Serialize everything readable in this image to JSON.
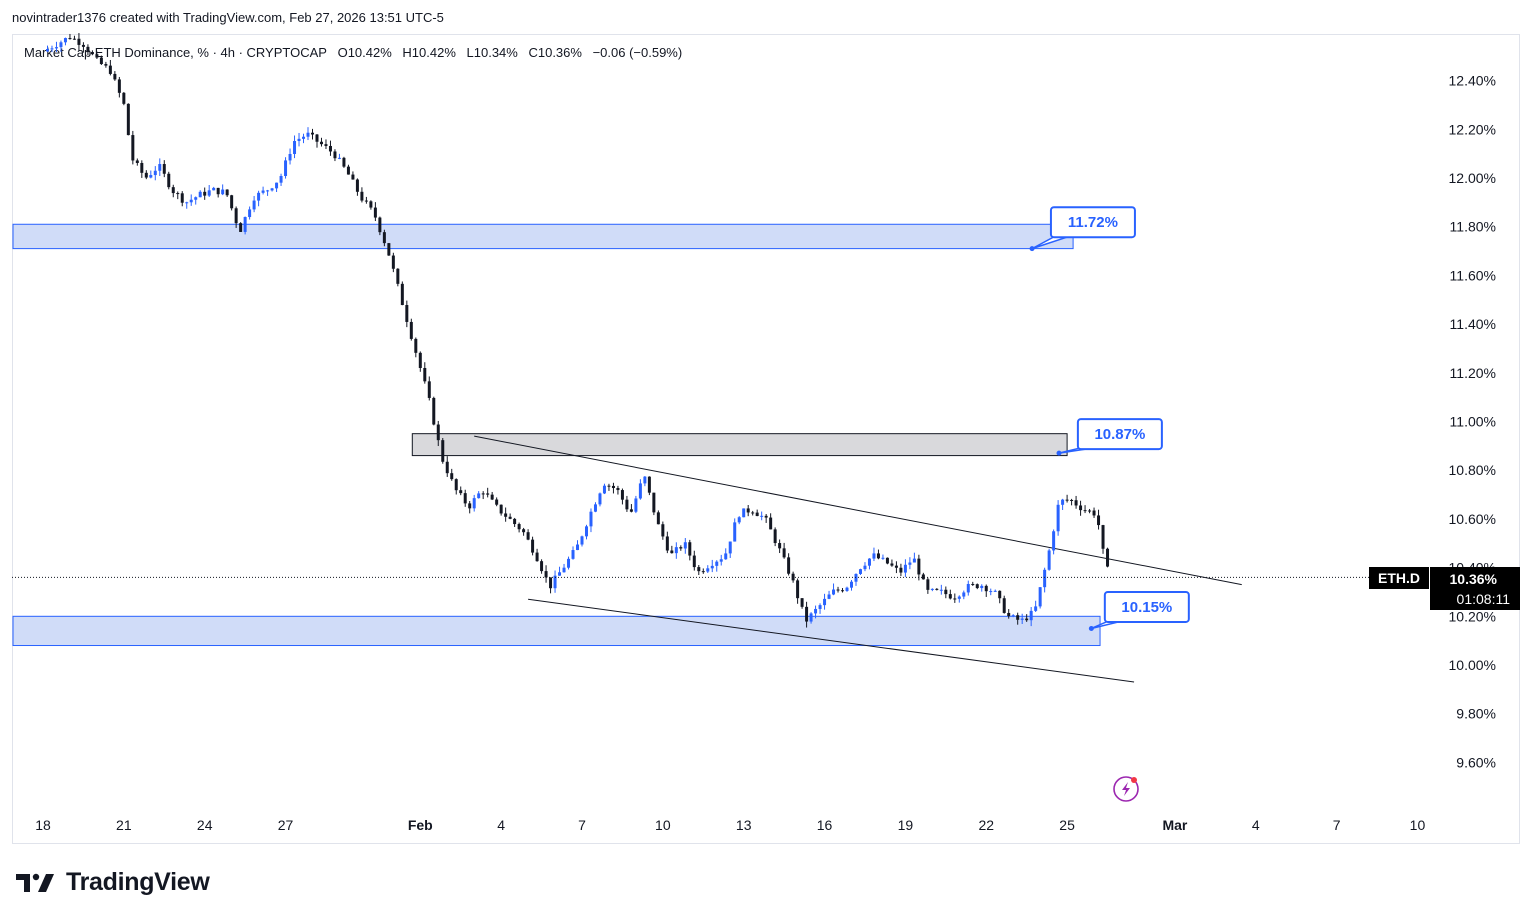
{
  "header": {
    "credit": "novintrader1376 created with TradingView.com, Feb 27, 2026 13:51 UTC-5"
  },
  "legend": {
    "symbol": "Market Cap ETH Dominance, % · 4h · CRYPTOCAP",
    "open": "O10.42%",
    "high": "H10.42%",
    "low": "L10.34%",
    "close": "C10.36%",
    "change": "−0.06 (−0.59%)"
  },
  "price_scale": {
    "ticker": "ETH.D",
    "last_price": "10.36%",
    "countdown": "01:08:11"
  },
  "annotations": {
    "upper_zone_label": "11.72%",
    "mid_zone_label": "10.87%",
    "lower_zone_label": "10.15%"
  },
  "footer": {
    "brand": "TradingView"
  },
  "colors": {
    "up_candle": "#2962ff",
    "down_candle": "#131722",
    "zone_fill": "#d0dcf8",
    "zone_border": "#2962ff",
    "grey_zone_fill": "#d9d9dc",
    "label_border": "#2962ff",
    "price_tag_bg": "#000000"
  },
  "chart_data": {
    "type": "candlestick",
    "title": "Market Cap ETH Dominance, % · 4h · CRYPTOCAP",
    "ylim": [
      9.5,
      12.6
    ],
    "y_ticks": [
      "12.40%",
      "12.20%",
      "12.00%",
      "11.80%",
      "11.60%",
      "11.40%",
      "11.20%",
      "11.00%",
      "10.80%",
      "10.60%",
      "10.40%",
      "10.20%",
      "10.00%",
      "9.80%",
      "9.60%"
    ],
    "y_tick_values": [
      12.4,
      12.2,
      12.0,
      11.8,
      11.6,
      11.4,
      11.2,
      11.0,
      10.8,
      10.6,
      10.4,
      10.2,
      10.0,
      9.8,
      9.6
    ],
    "x_ticks": [
      "18",
      "21",
      "24",
      "27",
      "Feb",
      "4",
      "7",
      "10",
      "13",
      "16",
      "19",
      "22",
      "25",
      "Mar",
      "4",
      "7",
      "10"
    ],
    "x_tick_days": [
      0,
      3,
      6,
      9,
      14,
      17,
      20,
      23,
      26,
      29,
      32,
      35,
      38,
      42,
      45,
      48,
      51
    ],
    "x_axis_start": "Jan 18, 2026",
    "last_close": 10.36,
    "zones": [
      {
        "name": "upper-support-zone",
        "from_date": "Jan 18",
        "to_date": "Feb 25",
        "y_low": 11.71,
        "y_high": 11.81,
        "label": "11.72%"
      },
      {
        "name": "resistance-zone",
        "from_date": "Feb 1",
        "to_date": "Feb 25",
        "y_low": 10.86,
        "y_high": 10.95,
        "label": "10.87%"
      },
      {
        "name": "lower-support-zone",
        "from_date": "Jan 18",
        "to_date": "Feb 26",
        "y_low": 10.08,
        "y_high": 10.2,
        "label": "10.15%"
      }
    ],
    "trendlines": [
      {
        "name": "upper-trendline",
        "from": {
          "date": "Feb 3",
          "y": 10.94
        },
        "to": {
          "date": "Mar 4",
          "y": 10.33
        }
      },
      {
        "name": "lower-trendline",
        "from": {
          "date": "Feb 5",
          "y": 10.27
        },
        "to": {
          "date": "Feb 26",
          "y": 9.93
        }
      }
    ],
    "series": [
      {
        "name": "ETH.D 4h close path",
        "points": [
          {
            "d": 0.0,
            "v": 12.52
          },
          {
            "d": 0.5,
            "v": 12.55
          },
          {
            "d": 1.0,
            "v": 12.58
          },
          {
            "d": 1.5,
            "v": 12.55
          },
          {
            "d": 2.0,
            "v": 12.48
          },
          {
            "d": 2.5,
            "v": 12.44
          },
          {
            "d": 3.0,
            "v": 12.3
          },
          {
            "d": 3.3,
            "v": 12.08
          },
          {
            "d": 3.8,
            "v": 12.0
          },
          {
            "d": 4.3,
            "v": 12.05
          },
          {
            "d": 4.8,
            "v": 11.95
          },
          {
            "d": 5.3,
            "v": 11.9
          },
          {
            "d": 5.8,
            "v": 11.93
          },
          {
            "d": 6.3,
            "v": 11.95
          },
          {
            "d": 6.8,
            "v": 11.94
          },
          {
            "d": 7.3,
            "v": 11.78
          },
          {
            "d": 7.8,
            "v": 11.92
          },
          {
            "d": 8.3,
            "v": 11.95
          },
          {
            "d": 8.8,
            "v": 12.0
          },
          {
            "d": 9.3,
            "v": 12.15
          },
          {
            "d": 9.8,
            "v": 12.18
          },
          {
            "d": 10.3,
            "v": 12.14
          },
          {
            "d": 10.8,
            "v": 12.1
          },
          {
            "d": 11.3,
            "v": 12.02
          },
          {
            "d": 11.8,
            "v": 11.92
          },
          {
            "d": 12.3,
            "v": 11.85
          },
          {
            "d": 12.8,
            "v": 11.7
          },
          {
            "d": 13.3,
            "v": 11.5
          },
          {
            "d": 13.8,
            "v": 11.3
          },
          {
            "d": 14.3,
            "v": 11.1
          },
          {
            "d": 14.8,
            "v": 10.85
          },
          {
            "d": 15.3,
            "v": 10.72
          },
          {
            "d": 15.8,
            "v": 10.65
          },
          {
            "d": 16.3,
            "v": 10.72
          },
          {
            "d": 16.8,
            "v": 10.65
          },
          {
            "d": 17.3,
            "v": 10.6
          },
          {
            "d": 17.8,
            "v": 10.55
          },
          {
            "d": 18.3,
            "v": 10.45
          },
          {
            "d": 18.8,
            "v": 10.32
          },
          {
            "d": 19.3,
            "v": 10.4
          },
          {
            "d": 19.8,
            "v": 10.48
          },
          {
            "d": 20.3,
            "v": 10.62
          },
          {
            "d": 20.8,
            "v": 10.75
          },
          {
            "d": 21.3,
            "v": 10.72
          },
          {
            "d": 21.8,
            "v": 10.62
          },
          {
            "d": 22.3,
            "v": 10.78
          },
          {
            "d": 22.8,
            "v": 10.58
          },
          {
            "d": 23.3,
            "v": 10.45
          },
          {
            "d": 23.8,
            "v": 10.5
          },
          {
            "d": 24.3,
            "v": 10.38
          },
          {
            "d": 24.8,
            "v": 10.42
          },
          {
            "d": 25.3,
            "v": 10.45
          },
          {
            "d": 25.8,
            "v": 10.62
          },
          {
            "d": 26.3,
            "v": 10.64
          },
          {
            "d": 26.8,
            "v": 10.6
          },
          {
            "d": 27.3,
            "v": 10.48
          },
          {
            "d": 27.8,
            "v": 10.35
          },
          {
            "d": 28.3,
            "v": 10.18
          },
          {
            "d": 28.8,
            "v": 10.24
          },
          {
            "d": 29.3,
            "v": 10.3
          },
          {
            "d": 29.8,
            "v": 10.32
          },
          {
            "d": 30.3,
            "v": 10.4
          },
          {
            "d": 30.8,
            "v": 10.45
          },
          {
            "d": 31.3,
            "v": 10.42
          },
          {
            "d": 31.8,
            "v": 10.38
          },
          {
            "d": 32.3,
            "v": 10.44
          },
          {
            "d": 32.8,
            "v": 10.3
          },
          {
            "d": 33.3,
            "v": 10.3
          },
          {
            "d": 33.8,
            "v": 10.28
          },
          {
            "d": 34.3,
            "v": 10.32
          },
          {
            "d": 34.8,
            "v": 10.33
          },
          {
            "d": 35.3,
            "v": 10.3
          },
          {
            "d": 35.8,
            "v": 10.2
          },
          {
            "d": 36.3,
            "v": 10.18
          },
          {
            "d": 36.8,
            "v": 10.22
          },
          {
            "d": 37.3,
            "v": 10.45
          },
          {
            "d": 37.7,
            "v": 10.67
          },
          {
            "d": 38.1,
            "v": 10.68
          },
          {
            "d": 38.6,
            "v": 10.64
          },
          {
            "d": 39.1,
            "v": 10.62
          },
          {
            "d": 39.4,
            "v": 10.42
          },
          {
            "d": 39.6,
            "v": 10.36
          }
        ]
      }
    ]
  }
}
